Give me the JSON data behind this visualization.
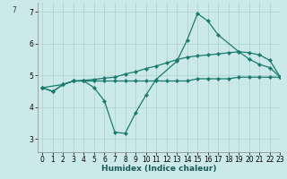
{
  "xlabel": "Humidex (Indice chaleur)",
  "background_color": "#cce9e9",
  "grid_color": "#aed4d4",
  "line_color": "#1a7a6e",
  "xlim": [
    -0.5,
    23
  ],
  "ylim": [
    2.6,
    7.3
  ],
  "yticks": [
    3,
    4,
    5,
    6,
    7
  ],
  "ytick_label_top": "7",
  "xticks": [
    0,
    1,
    2,
    3,
    4,
    5,
    6,
    7,
    8,
    9,
    10,
    11,
    12,
    13,
    14,
    15,
    16,
    17,
    18,
    19,
    20,
    21,
    22,
    23
  ],
  "series1_x": [
    0,
    1,
    2,
    3,
    4,
    5,
    6,
    7,
    8,
    9,
    10,
    11,
    12,
    13,
    14,
    15,
    16,
    17,
    18,
    19,
    20,
    21,
    22,
    23
  ],
  "series1_y": [
    4.62,
    4.5,
    4.72,
    4.83,
    4.83,
    4.83,
    4.83,
    4.83,
    4.83,
    4.83,
    4.83,
    4.83,
    4.83,
    4.83,
    4.83,
    4.9,
    4.9,
    4.9,
    4.9,
    4.95,
    4.95,
    4.95,
    4.95,
    4.95
  ],
  "series2_x": [
    0,
    1,
    2,
    3,
    4,
    5,
    6,
    7,
    8,
    9,
    10,
    11,
    12,
    13,
    14,
    15,
    16,
    17,
    18,
    19,
    20,
    21,
    22,
    23
  ],
  "series2_y": [
    4.62,
    4.5,
    4.72,
    4.83,
    4.85,
    4.88,
    4.92,
    4.95,
    5.05,
    5.12,
    5.22,
    5.3,
    5.4,
    5.5,
    5.58,
    5.62,
    5.65,
    5.68,
    5.72,
    5.75,
    5.72,
    5.65,
    5.48,
    4.95
  ],
  "series3_x": [
    0,
    2,
    3,
    4,
    5,
    6,
    7,
    8,
    9,
    10,
    11,
    13,
    14,
    15,
    16,
    17,
    19,
    20,
    21,
    22,
    23
  ],
  "series3_y": [
    4.62,
    4.72,
    4.83,
    4.83,
    4.62,
    4.2,
    3.22,
    3.18,
    3.82,
    4.38,
    4.88,
    5.45,
    6.12,
    6.95,
    6.72,
    6.28,
    5.75,
    5.52,
    5.35,
    5.25,
    4.95
  ]
}
